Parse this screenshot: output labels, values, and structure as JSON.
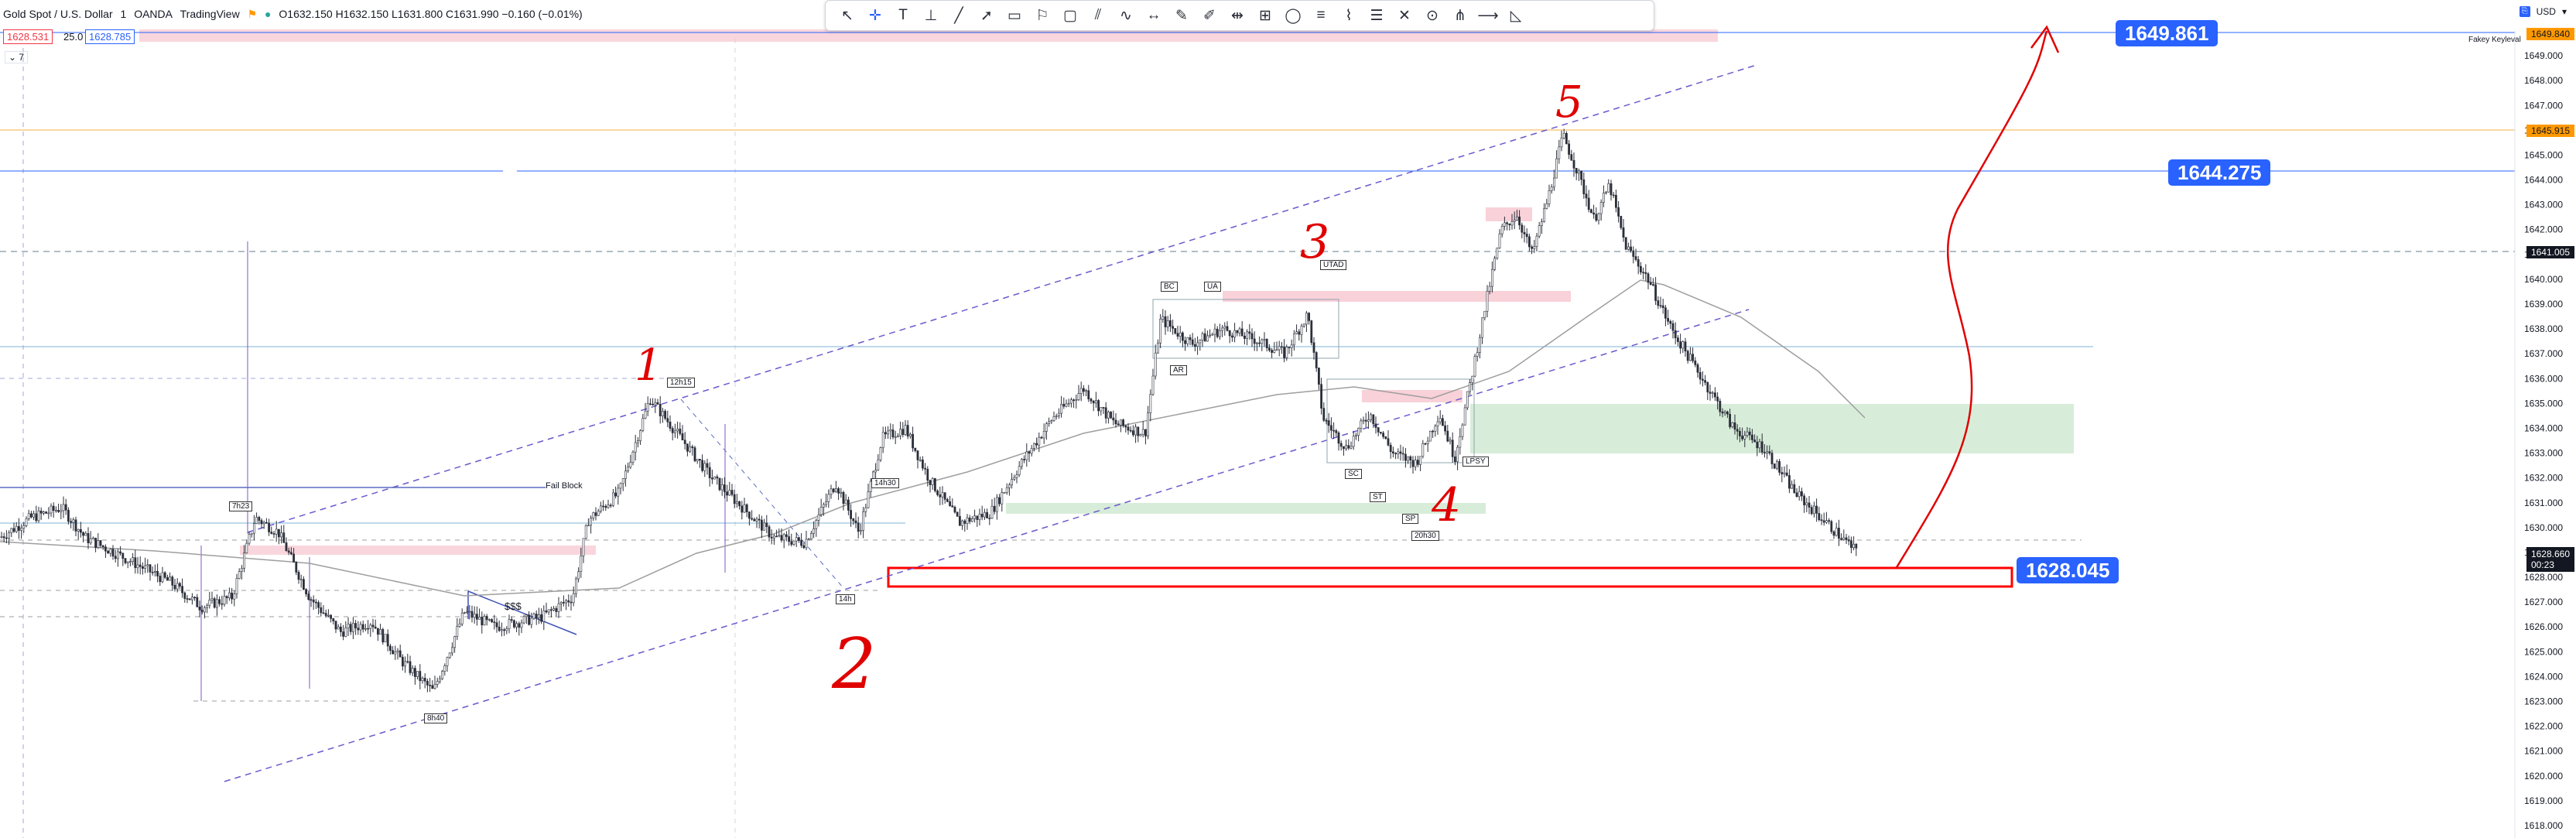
{
  "legend": {
    "symbol": "Gold Spot / U.S. Dollar",
    "interval": "1",
    "broker": "OANDA",
    "platform": "TradingView",
    "ohlc": "O1632.150 H1632.150 L1631.800 C1631.990 −0.160 (−0.01%)",
    "bid": "1628.531",
    "spread": "25.0",
    "ask": "1628.785",
    "collapse": "7"
  },
  "axis": {
    "currency": "USD",
    "current_price": "1628.660",
    "countdown": "00:23",
    "line_marker": "1641.005",
    "orange_marker": "1645.915",
    "top_marker": "1649.840",
    "top_note": "Fakey Keyleval"
  },
  "toolbar": {
    "tools": [
      "cursor-icon",
      "crosshair-icon",
      "text-icon",
      "vertical-line-icon",
      "trend-line-icon",
      "arrow-icon",
      "callout-icon",
      "flag-icon",
      "rectangle-icon",
      "parallel-channel-icon",
      "curve-icon",
      "range-icon",
      "pen-icon",
      "brush-icon",
      "date-range-icon",
      "gann-icon",
      "ellipse-icon",
      "fib-icon",
      "path-icon",
      "levels-icon",
      "cross-icon",
      "circle-icon",
      "pitchfork-icon",
      "horizontal-ray-icon",
      "triangle-icon"
    ]
  },
  "price_labels": [
    "1649.861",
    "1644.275",
    "1628.045"
  ],
  "annotations": {
    "wave1": "1",
    "wave2": "2",
    "wave3": "3",
    "wave4": "4",
    "wave5": "5",
    "fail_block": "Fail Block",
    "sss": "$$$",
    "boxes": [
      "7h23",
      "12h15",
      "14h",
      "14h30",
      "8h40",
      "BC",
      "UA",
      "AR",
      "UTAD",
      "SC",
      "ST",
      "SP",
      "20h30",
      "LPSY"
    ]
  },
  "colors": {
    "candle": "#2a2e39",
    "blue_label": "#2962ff",
    "red_box": "#ff0000",
    "pink_zone": "#f7c5cf",
    "green_zone": "#c8e6c9",
    "ma": "#9e9e9e",
    "channel": "#6a5acd"
  },
  "chart_data": {
    "type": "candlestick",
    "title": "Gold Spot / U.S. Dollar",
    "ylim": [
      1617.5,
      1650.0
    ],
    "yticks": [
      1618,
      1619,
      1620,
      1621,
      1622,
      1623,
      1624,
      1625,
      1626,
      1627,
      1628,
      1629,
      1630,
      1631,
      1632,
      1633,
      1634,
      1635,
      1636,
      1637,
      1638,
      1639,
      1640,
      1641,
      1642,
      1643,
      1644,
      1645,
      1646,
      1647,
      1648,
      1649
    ],
    "price_path": [
      [
        0,
        1629.6
      ],
      [
        40,
        1630.4
      ],
      [
        80,
        1630.8
      ],
      [
        110,
        1629.6
      ],
      [
        160,
        1628.8
      ],
      [
        220,
        1627.8
      ],
      [
        260,
        1626.8
      ],
      [
        300,
        1627.2
      ],
      [
        330,
        1630.4
      ],
      [
        360,
        1629.8
      ],
      [
        400,
        1627.2
      ],
      [
        440,
        1625.8
      ],
      [
        480,
        1626.2
      ],
      [
        520,
        1624.6
      ],
      [
        560,
        1623.4
      ],
      [
        600,
        1626.6
      ],
      [
        640,
        1626.0
      ],
      [
        700,
        1626.4
      ],
      [
        740,
        1627.2
      ],
      [
        760,
        1630.3
      ],
      [
        800,
        1631.4
      ],
      [
        840,
        1635.2
      ],
      [
        880,
        1633.6
      ],
      [
        920,
        1632.0
      ],
      [
        960,
        1630.8
      ],
      [
        1000,
        1629.6
      ],
      [
        1040,
        1629.4
      ],
      [
        1080,
        1631.8
      ],
      [
        1110,
        1629.8
      ],
      [
        1140,
        1633.6
      ],
      [
        1170,
        1634.0
      ],
      [
        1200,
        1632.0
      ],
      [
        1240,
        1630.2
      ],
      [
        1280,
        1630.6
      ],
      [
        1320,
        1632.6
      ],
      [
        1360,
        1634.4
      ],
      [
        1400,
        1635.6
      ],
      [
        1440,
        1634.2
      ],
      [
        1480,
        1633.8
      ],
      [
        1500,
        1638.4
      ],
      [
        1540,
        1637.4
      ],
      [
        1580,
        1638.0
      ],
      [
        1620,
        1637.6
      ],
      [
        1660,
        1637.0
      ],
      [
        1690,
        1638.6
      ],
      [
        1710,
        1634.4
      ],
      [
        1740,
        1633.2
      ],
      [
        1770,
        1634.6
      ],
      [
        1800,
        1633.0
      ],
      [
        1830,
        1632.6
      ],
      [
        1860,
        1634.6
      ],
      [
        1880,
        1632.8
      ],
      [
        1900,
        1635.8
      ],
      [
        1920,
        1639.0
      ],
      [
        1940,
        1642.0
      ],
      [
        1960,
        1642.6
      ],
      [
        1980,
        1641.0
      ],
      [
        2000,
        1643.2
      ],
      [
        2020,
        1645.8
      ],
      [
        2040,
        1644.2
      ],
      [
        2060,
        1642.4
      ],
      [
        2080,
        1643.8
      ],
      [
        2100,
        1641.4
      ],
      [
        2130,
        1640.0
      ],
      [
        2160,
        1638.0
      ],
      [
        2200,
        1636.0
      ],
      [
        2240,
        1634.0
      ],
      [
        2280,
        1633.2
      ],
      [
        2320,
        1631.4
      ],
      [
        2360,
        1630.2
      ],
      [
        2400,
        1629.0
      ]
    ],
    "levels": [
      {
        "name": "1649.861",
        "value": 1649.861
      },
      {
        "name": "1644.275",
        "value": 1644.275
      },
      {
        "name": "1628.045",
        "value": 1628.045
      }
    ]
  }
}
